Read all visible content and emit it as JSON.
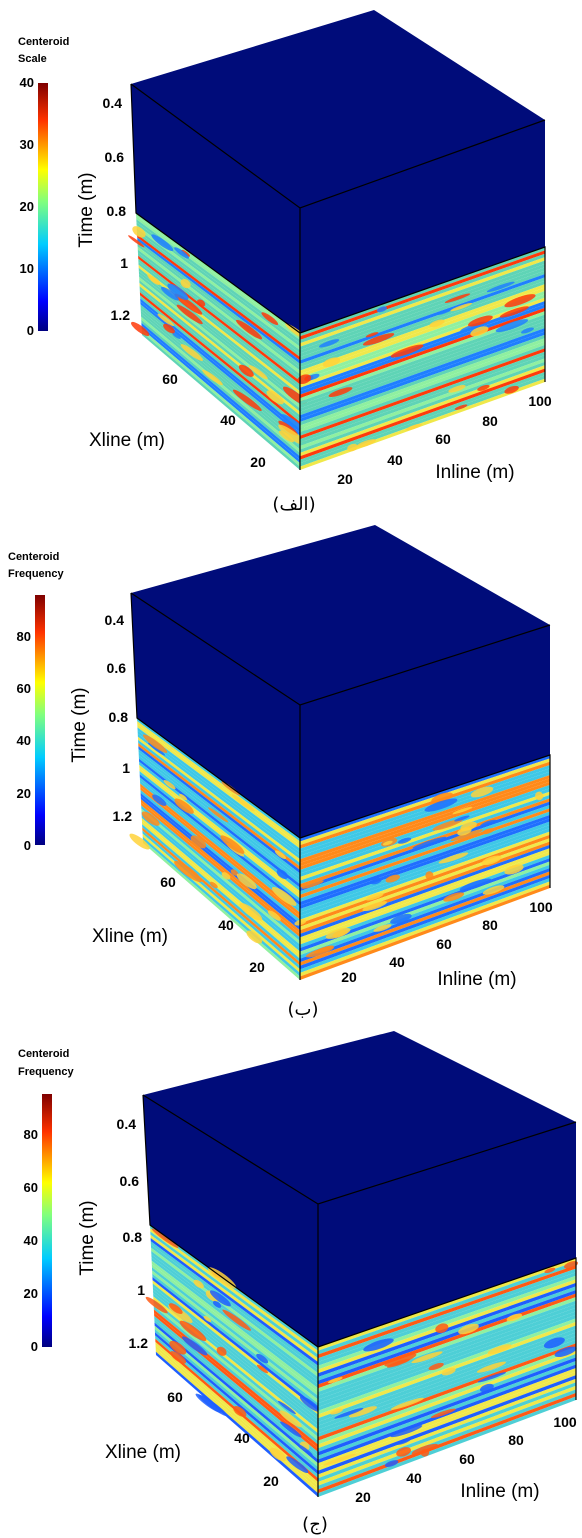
{
  "chart_data": [
    {
      "type": "heatmap",
      "caption": "(الف)",
      "colorbar": {
        "title_lines": [
          "Centeroid",
          "Scale"
        ],
        "ticks": [
          "0",
          "10",
          "20",
          "30",
          "40"
        ],
        "range": [
          0,
          40
        ]
      },
      "time_axis": {
        "label": "Time (m)",
        "ticks": [
          "0.4",
          "0.6",
          "0.8",
          "1",
          "1.2"
        ]
      },
      "xline_axis": {
        "label": "Xline (m)",
        "ticks": [
          "20",
          "40",
          "60"
        ]
      },
      "inline_axis": {
        "label": "Inline (m)",
        "ticks": [
          "20",
          "40",
          "60",
          "80",
          "100"
        ]
      },
      "slice_start_time": 0.8,
      "colors": {
        "top": "#000c7a",
        "base": "#5fd4b6",
        "high": "#ff3a0a",
        "low": "#1f7fff"
      }
    },
    {
      "type": "heatmap",
      "caption": "(ب)",
      "colorbar": {
        "title_lines": [
          "Centeroid",
          "Frequency"
        ],
        "ticks": [
          "0",
          "20",
          "40",
          "60",
          "80"
        ],
        "range": [
          0,
          95
        ]
      },
      "time_axis": {
        "label": "Time (m)",
        "ticks": [
          "0.4",
          "0.6",
          "0.8",
          "1",
          "1.2"
        ]
      },
      "xline_axis": {
        "label": "Xline (m)",
        "ticks": [
          "20",
          "40",
          "60"
        ]
      },
      "inline_axis": {
        "label": "Inline (m)",
        "ticks": [
          "20",
          "40",
          "60",
          "80",
          "100"
        ]
      },
      "slice_start_time": 0.8,
      "colors": {
        "top": "#000c7a",
        "base": "#3fc8e6",
        "high": "#ff8a1a",
        "low": "#1f6fff"
      }
    },
    {
      "type": "heatmap",
      "caption": "(ج)",
      "colorbar": {
        "title_lines": [
          "Centeroid",
          "Frequency"
        ],
        "ticks": [
          "0",
          "20",
          "40",
          "60",
          "80"
        ],
        "range": [
          0,
          95
        ]
      },
      "time_axis": {
        "label": "Time (m)",
        "ticks": [
          "0.4",
          "0.6",
          "0.8",
          "1",
          "1.2"
        ]
      },
      "xline_axis": {
        "label": "Xline (m)",
        "ticks": [
          "20",
          "40",
          "60"
        ]
      },
      "inline_axis": {
        "label": "Inline (m)",
        "ticks": [
          "20",
          "40",
          "60",
          "80",
          "100"
        ]
      },
      "slice_start_time": 0.8,
      "colors": {
        "top": "#000c7a",
        "base": "#4ecfd6",
        "high": "#ff5a14",
        "low": "#1f5fff"
      }
    }
  ]
}
